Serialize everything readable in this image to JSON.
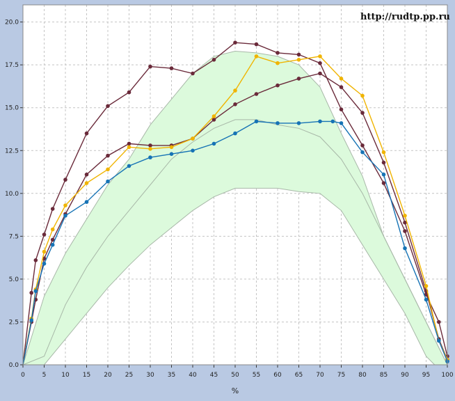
{
  "watermark": "http://rudtp.pp.ru",
  "chart_data": {
    "type": "line",
    "title": "",
    "xlabel": "%",
    "ylabel": "",
    "xlim": [
      0,
      100
    ],
    "ylim": [
      0,
      21
    ],
    "grid": true,
    "x_ticks": [
      "0",
      "5",
      "10",
      "15",
      "20",
      "25",
      "30",
      "35",
      "40",
      "45",
      "50",
      "55",
      "60",
      "65",
      "70",
      "75",
      "80",
      "85",
      "90",
      "95",
      "100"
    ],
    "y_ticks": [
      "0.0",
      "2.5",
      "5.0",
      "7.5",
      "10.0",
      "12.5",
      "15.0",
      "17.5",
      "20.0"
    ],
    "colors": {
      "background": "#ffffff",
      "outer": "#b9c9e3",
      "band_fill": "#dcfadc",
      "band_edge": "#a8b8a8",
      "grid": "#c4c4c4",
      "dark_series": "#6a2a3a",
      "orange_series": "#f0b400",
      "blue_series": "#1673b5"
    },
    "band": {
      "upper": [
        [
          0,
          0
        ],
        [
          5,
          4
        ],
        [
          10,
          6.5
        ],
        [
          15,
          8.5
        ],
        [
          20,
          10.5
        ],
        [
          25,
          12
        ],
        [
          30,
          14
        ],
        [
          35,
          15.5
        ],
        [
          40,
          17
        ],
        [
          45,
          18
        ],
        [
          50,
          18.3
        ],
        [
          55,
          18.2
        ],
        [
          60,
          18
        ],
        [
          65,
          17.5
        ],
        [
          70,
          16.2
        ],
        [
          75,
          13.5
        ],
        [
          80,
          11
        ],
        [
          85,
          7.5
        ],
        [
          90,
          5
        ],
        [
          95,
          2.5
        ],
        [
          100,
          0
        ]
      ],
      "middle": [
        [
          0,
          0
        ],
        [
          5,
          0.5
        ],
        [
          10,
          3.5
        ],
        [
          15,
          5.7
        ],
        [
          20,
          7.5
        ],
        [
          25,
          9
        ],
        [
          30,
          10.5
        ],
        [
          35,
          12
        ],
        [
          40,
          13
        ],
        [
          45,
          13.8
        ],
        [
          50,
          14.3
        ],
        [
          55,
          14.3
        ],
        [
          60,
          14
        ],
        [
          65,
          13.8
        ],
        [
          70,
          13.3
        ],
        [
          75,
          12
        ],
        [
          80,
          10
        ],
        [
          85,
          7.5
        ],
        [
          90,
          5
        ],
        [
          95,
          2.5
        ],
        [
          100,
          0
        ]
      ],
      "lower": [
        [
          0,
          0
        ],
        [
          5,
          0
        ],
        [
          10,
          1.5
        ],
        [
          15,
          3
        ],
        [
          20,
          4.5
        ],
        [
          25,
          5.8
        ],
        [
          30,
          7
        ],
        [
          35,
          8
        ],
        [
          40,
          9
        ],
        [
          45,
          9.8
        ],
        [
          50,
          10.3
        ],
        [
          55,
          10.3
        ],
        [
          60,
          10.3
        ],
        [
          65,
          10.1
        ],
        [
          70,
          10
        ],
        [
          75,
          9
        ],
        [
          80,
          7
        ],
        [
          85,
          5
        ],
        [
          90,
          3
        ],
        [
          95,
          0.5
        ],
        [
          97,
          0
        ]
      ]
    },
    "series": [
      {
        "points": [
          [
            0,
            0
          ],
          [
            2,
            4.2
          ],
          [
            3,
            6.1
          ],
          [
            5,
            7.6
          ],
          [
            7,
            9.1
          ],
          [
            10,
            10.8
          ],
          [
            15,
            13.5
          ],
          [
            20,
            15.1
          ],
          [
            25,
            15.9
          ],
          [
            30,
            17.4
          ],
          [
            35,
            17.3
          ],
          [
            40,
            17
          ],
          [
            45,
            17.8
          ],
          [
            50,
            18.8
          ],
          [
            55,
            18.7
          ],
          [
            60,
            18.2
          ],
          [
            65,
            18.1
          ],
          [
            70,
            17.6
          ],
          [
            75,
            14.9
          ],
          [
            80,
            12.8
          ],
          [
            85,
            10.6
          ],
          [
            90,
            7.8
          ],
          [
            95,
            4.1
          ],
          [
            98,
            2.5
          ],
          [
            100,
            0.5
          ]
        ]
      },
      {
        "points": [
          [
            0,
            0
          ],
          [
            2,
            2.5
          ],
          [
            3,
            3.8
          ],
          [
            5,
            6.2
          ],
          [
            7,
            7.3
          ],
          [
            10,
            8.8
          ],
          [
            15,
            11.1
          ],
          [
            20,
            12.2
          ],
          [
            25,
            12.9
          ],
          [
            30,
            12.8
          ],
          [
            35,
            12.8
          ],
          [
            40,
            13.2
          ],
          [
            45,
            14.3
          ],
          [
            50,
            15.2
          ],
          [
            55,
            15.8
          ],
          [
            60,
            16.3
          ],
          [
            65,
            16.7
          ],
          [
            70,
            17
          ],
          [
            75,
            16.2
          ],
          [
            80,
            14.7
          ],
          [
            85,
            11.8
          ],
          [
            90,
            8.3
          ],
          [
            95,
            4.3
          ],
          [
            98,
            1.5
          ],
          [
            100,
            0.3
          ]
        ]
      },
      {
        "points": [
          [
            0,
            0
          ],
          [
            2,
            2.7
          ],
          [
            3,
            4.4
          ],
          [
            5,
            6.6
          ],
          [
            7,
            7.9
          ],
          [
            10,
            9.3
          ],
          [
            15,
            10.6
          ],
          [
            20,
            11.4
          ],
          [
            25,
            12.7
          ],
          [
            30,
            12.6
          ],
          [
            35,
            12.7
          ],
          [
            40,
            13.2
          ],
          [
            45,
            14.5
          ],
          [
            50,
            16
          ],
          [
            55,
            18
          ],
          [
            60,
            17.6
          ],
          [
            65,
            17.8
          ],
          [
            70,
            18
          ],
          [
            75,
            16.7
          ],
          [
            80,
            15.7
          ],
          [
            85,
            12.4
          ],
          [
            90,
            8.7
          ],
          [
            95,
            4.6
          ],
          [
            98,
            1.4
          ],
          [
            100,
            0.3
          ]
        ]
      },
      {
        "points": [
          [
            0,
            0
          ],
          [
            2,
            2.6
          ],
          [
            3,
            4.3
          ],
          [
            5,
            5.9
          ],
          [
            7,
            7
          ],
          [
            10,
            8.7
          ],
          [
            15,
            9.5
          ],
          [
            20,
            10.7
          ],
          [
            25,
            11.6
          ],
          [
            30,
            12.1
          ],
          [
            35,
            12.3
          ],
          [
            40,
            12.5
          ],
          [
            45,
            12.9
          ],
          [
            50,
            13.5
          ],
          [
            55,
            14.2
          ],
          [
            60,
            14.1
          ],
          [
            65,
            14.1
          ],
          [
            70,
            14.2
          ],
          [
            73,
            14.2
          ],
          [
            75,
            14.1
          ],
          [
            80,
            12.4
          ],
          [
            85,
            11.1
          ],
          [
            90,
            6.8
          ],
          [
            95,
            3.8
          ],
          [
            98,
            1.4
          ],
          [
            100,
            0.2
          ]
        ]
      }
    ]
  }
}
